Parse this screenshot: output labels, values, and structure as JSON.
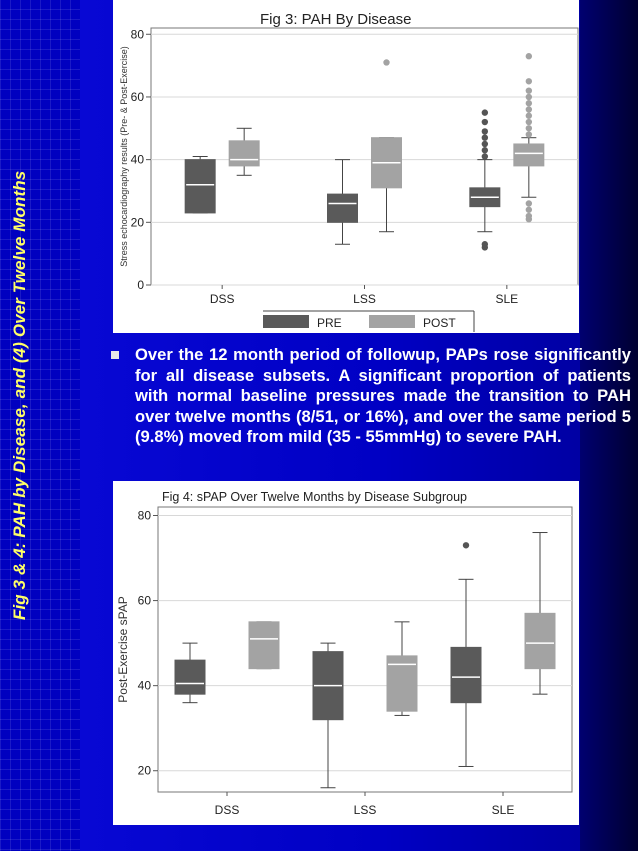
{
  "slide": {
    "side_title": "Fig 3 & 4: PAH by Disease, and (4) Over Twelve Months",
    "bullet": "Over the 12 month period of followup, PAPs rose significantly for all disease subsets. A significant proportion of patients with normal baseline pressures made the transition to PAH over twelve months (8/51, or 16%), and over the same period 5 (9.8%) moved from mild (35 - 55mmHg) to severe PAH."
  },
  "colors": {
    "pre": "#5a5a5a",
    "post": "#a3a3a3",
    "outlier": "#555555",
    "post_outlier": "#a3a3a3",
    "slide_background": "#0000cc",
    "side_title": "#ffff66"
  },
  "chart_data": [
    {
      "type": "box",
      "title": "Fig 3: PAH By Disease",
      "ylabel": "Stress echocardiography results (Pre- & Post-Exercise)",
      "ylim": [
        0,
        82
      ],
      "yticks": [
        0,
        20,
        40,
        60,
        80
      ],
      "yticklabels": [
        "0",
        "20",
        "40",
        "60",
        "80"
      ],
      "categories": [
        "DSS",
        "LSS",
        "SLE"
      ],
      "legend": {
        "placement": "bottom",
        "entries": [
          "PRE",
          "POST"
        ]
      },
      "grid": true,
      "series": [
        {
          "name": "PRE",
          "boxes": [
            {
              "category": "DSS",
              "whisker_low": 23,
              "q1": 23,
              "median": 32,
              "q3": 40,
              "whisker_high": 41,
              "outliers": []
            },
            {
              "category": "LSS",
              "whisker_low": 13,
              "q1": 20,
              "median": 26,
              "q3": 29,
              "whisker_high": 40,
              "outliers": []
            },
            {
              "category": "SLE",
              "whisker_low": 17,
              "q1": 25,
              "median": 28,
              "q3": 31,
              "whisker_high": 40,
              "outliers": [
                12,
                13,
                41,
                43,
                45,
                47,
                49,
                52,
                55
              ]
            }
          ]
        },
        {
          "name": "POST",
          "boxes": [
            {
              "category": "DSS",
              "whisker_low": 35,
              "q1": 38,
              "median": 40,
              "q3": 46,
              "whisker_high": 50,
              "outliers": []
            },
            {
              "category": "LSS",
              "whisker_low": 17,
              "q1": 31,
              "median": 39,
              "q3": 47,
              "whisker_high": 47,
              "outliers": [
                71
              ]
            },
            {
              "category": "SLE",
              "whisker_low": 28,
              "q1": 38,
              "median": 42,
              "q3": 45,
              "whisker_high": 47,
              "outliers": [
                21,
                22,
                24,
                26,
                48,
                50,
                52,
                54,
                56,
                58,
                60,
                62,
                65,
                73
              ]
            }
          ]
        }
      ]
    },
    {
      "type": "box",
      "title": "Fig 4: sPAP Over Twelve Months by Disease Subgroup",
      "ylabel": "Post-Exercise sPAP",
      "ylim": [
        15,
        82
      ],
      "yticks": [
        20,
        40,
        60,
        80
      ],
      "yticklabels": [
        "20",
        "40",
        "60",
        "80"
      ],
      "categories": [
        "DSS",
        "LSS",
        "SLE"
      ],
      "grid": true,
      "series": [
        {
          "boxes": [
            {
              "category": "DSS",
              "whisker_low": 36,
              "q1": 38,
              "median": 40.5,
              "q3": 46,
              "whisker_high": 50,
              "outliers": []
            },
            {
              "category": "LSS",
              "whisker_low": 16,
              "q1": 32,
              "median": 40,
              "q3": 48,
              "whisker_high": 50,
              "outliers": []
            },
            {
              "category": "SLE",
              "whisker_low": 21,
              "q1": 36,
              "median": 42,
              "q3": 49,
              "whisker_high": 65,
              "outliers": [
                73
              ]
            }
          ]
        },
        {
          "boxes": [
            {
              "category": "DSS",
              "whisker_low": 44,
              "q1": 44,
              "median": 51,
              "q3": 55,
              "whisker_high": 55,
              "outliers": []
            },
            {
              "category": "LSS",
              "whisker_low": 33,
              "q1": 34,
              "median": 45,
              "q3": 47,
              "whisker_high": 55,
              "outliers": []
            },
            {
              "category": "SLE",
              "whisker_low": 38,
              "q1": 44,
              "median": 50,
              "q3": 57,
              "whisker_high": 76,
              "outliers": []
            }
          ]
        }
      ]
    }
  ]
}
